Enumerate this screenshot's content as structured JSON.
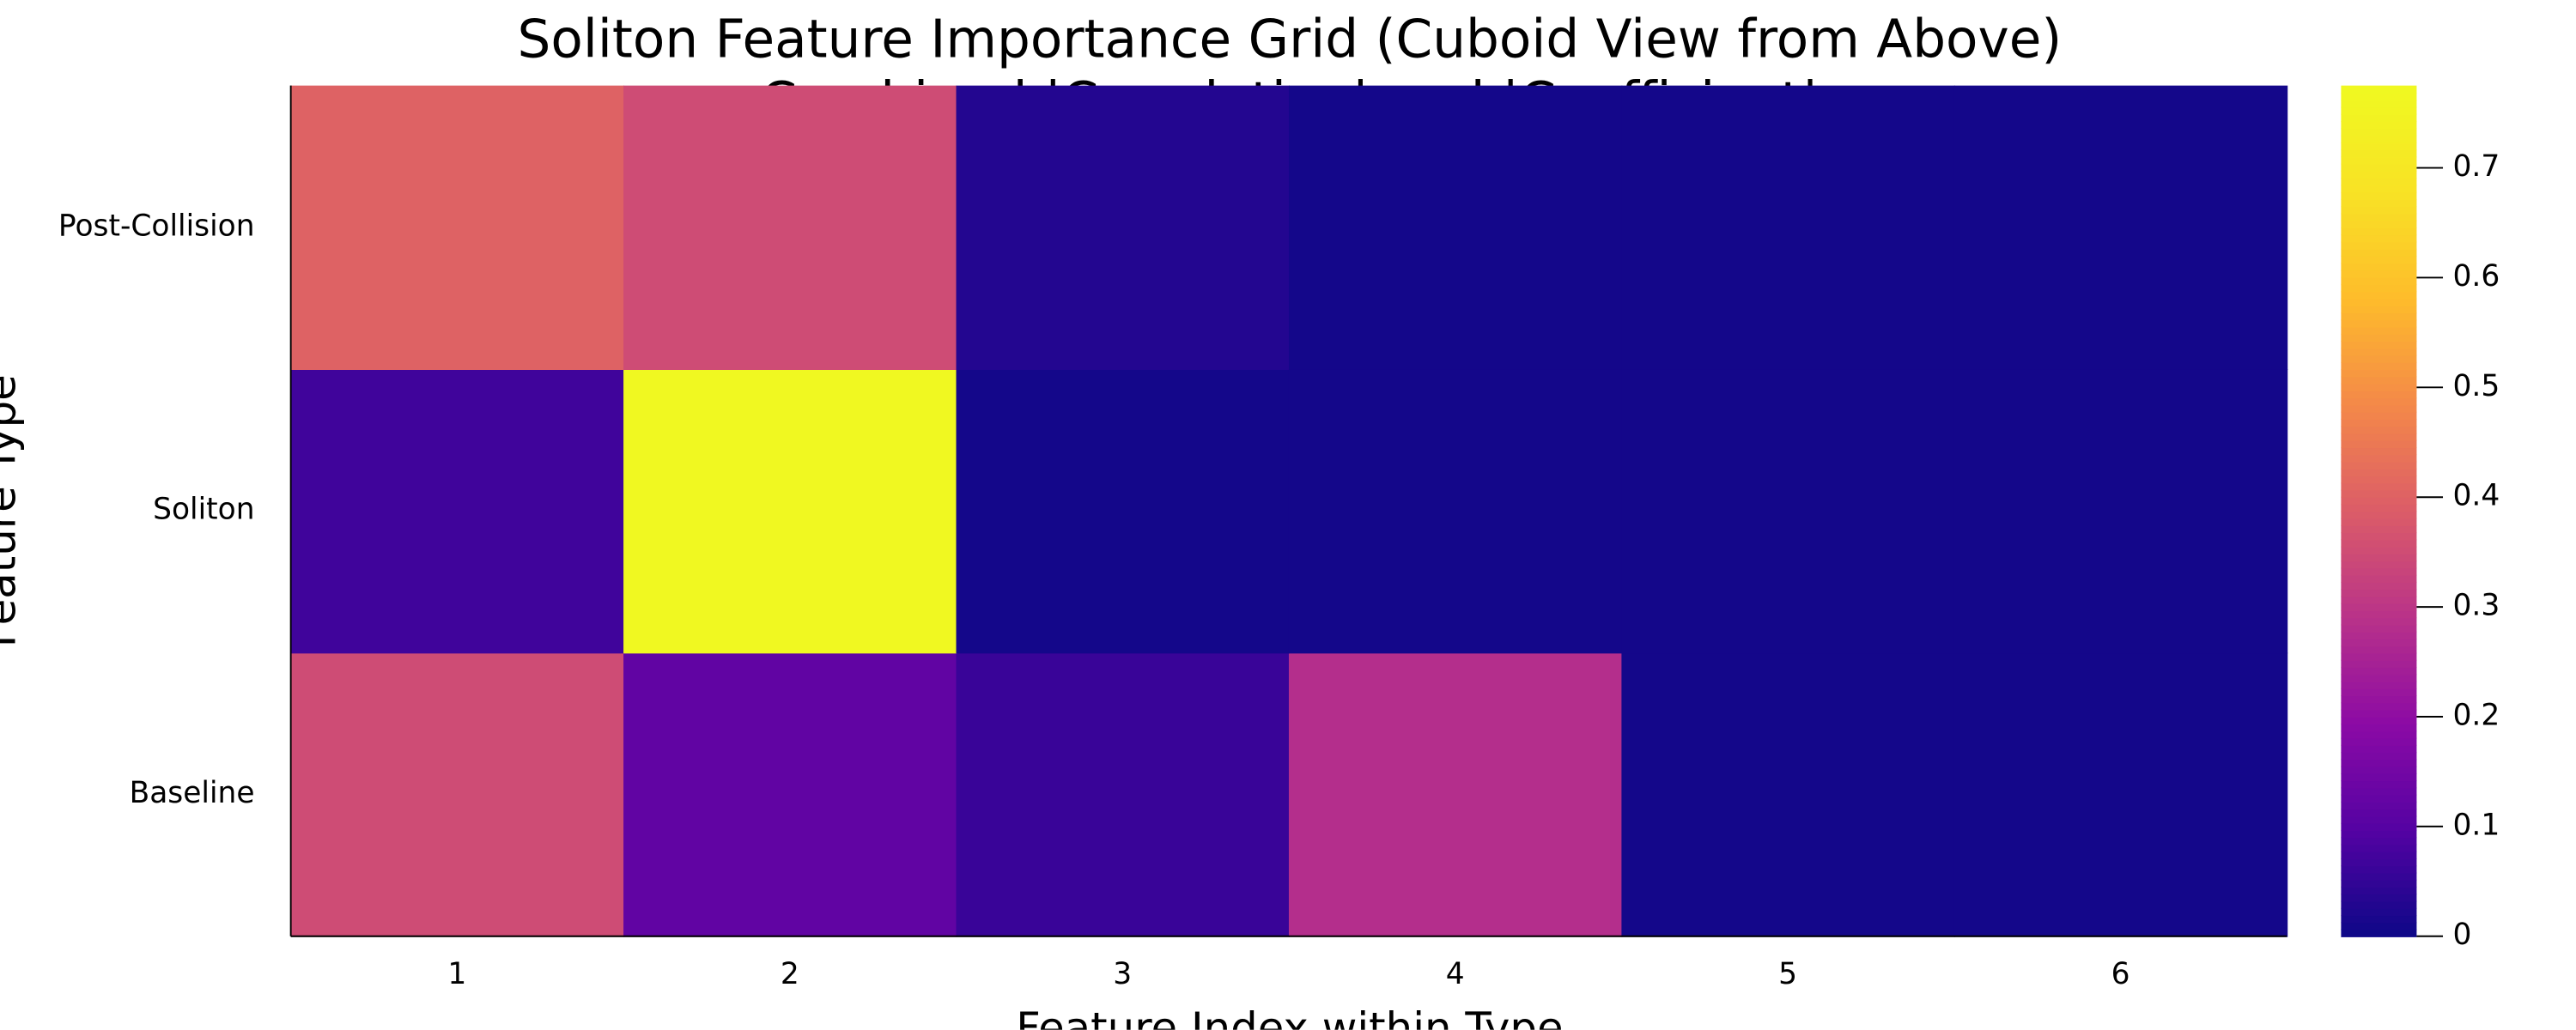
{
  "chart_data": {
    "type": "heatmap",
    "title": "Soliton Feature Importance Grid (Cuboid View from Above)",
    "subtitle": "Combined |Correlation| and |Coefficient|",
    "x_label": "Feature Index within Type",
    "y_label": "Feature Type",
    "x": [
      1,
      2,
      3,
      4,
      5,
      6
    ],
    "y": [
      "Baseline",
      "Soliton",
      "Post-Collision"
    ],
    "values": [
      [
        0.35,
        0.12,
        0.06,
        0.28,
        0.01,
        0.01
      ],
      [
        0.07,
        0.77,
        0.01,
        0.01,
        0.01,
        0.01
      ],
      [
        0.4,
        0.35,
        0.03,
        0.01,
        0.01,
        0.01
      ]
    ],
    "colormap": "plasma",
    "zlim": [
      0,
      0.775
    ],
    "zticks": [
      0,
      0.1,
      0.2,
      0.3,
      0.4,
      0.5,
      0.6,
      0.7
    ]
  }
}
